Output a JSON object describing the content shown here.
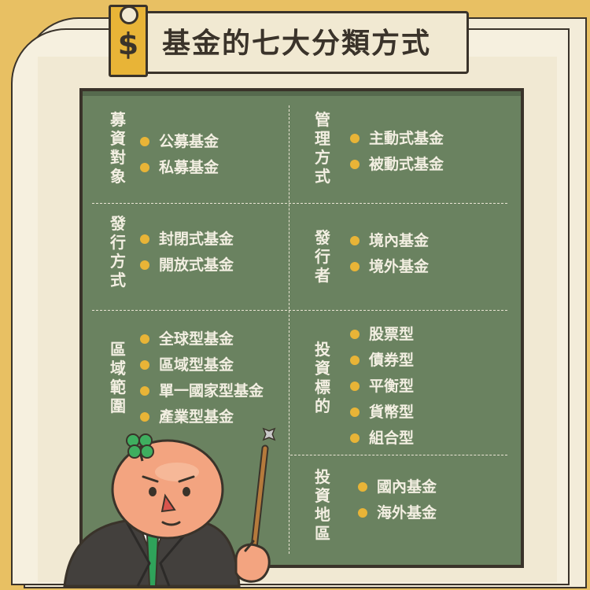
{
  "title": {
    "text": "基金的七大分類方式",
    "icon": "dollar-icon",
    "icon_glyph": "$"
  },
  "colors": {
    "background": "#e8c063",
    "board": "#6a8260",
    "accent": "#e8b437",
    "chalk": "#f3efe2"
  },
  "sections": {
    "fundraising": {
      "heading": "募資對象",
      "items": [
        "公募基金",
        "私募基金"
      ]
    },
    "management": {
      "heading": "管理方式",
      "items": [
        "主動式基金",
        "被動式基金"
      ]
    },
    "issuance": {
      "heading": "發行方式",
      "items": [
        "封閉式基金",
        "開放式基金"
      ]
    },
    "issuer": {
      "heading": "發行者",
      "items": [
        "境內基金",
        "境外基金"
      ]
    },
    "region": {
      "heading": "區域範圍",
      "items": [
        "全球型基金",
        "區域型基金",
        "單一國家型基金",
        "產業型基金"
      ]
    },
    "target": {
      "heading": "投資標的",
      "items": [
        "股票型",
        "債券型",
        "平衡型",
        "貨幣型",
        "組合型"
      ]
    },
    "area": {
      "heading": "投資地區",
      "items": [
        "國內基金",
        "海外基金"
      ]
    }
  }
}
